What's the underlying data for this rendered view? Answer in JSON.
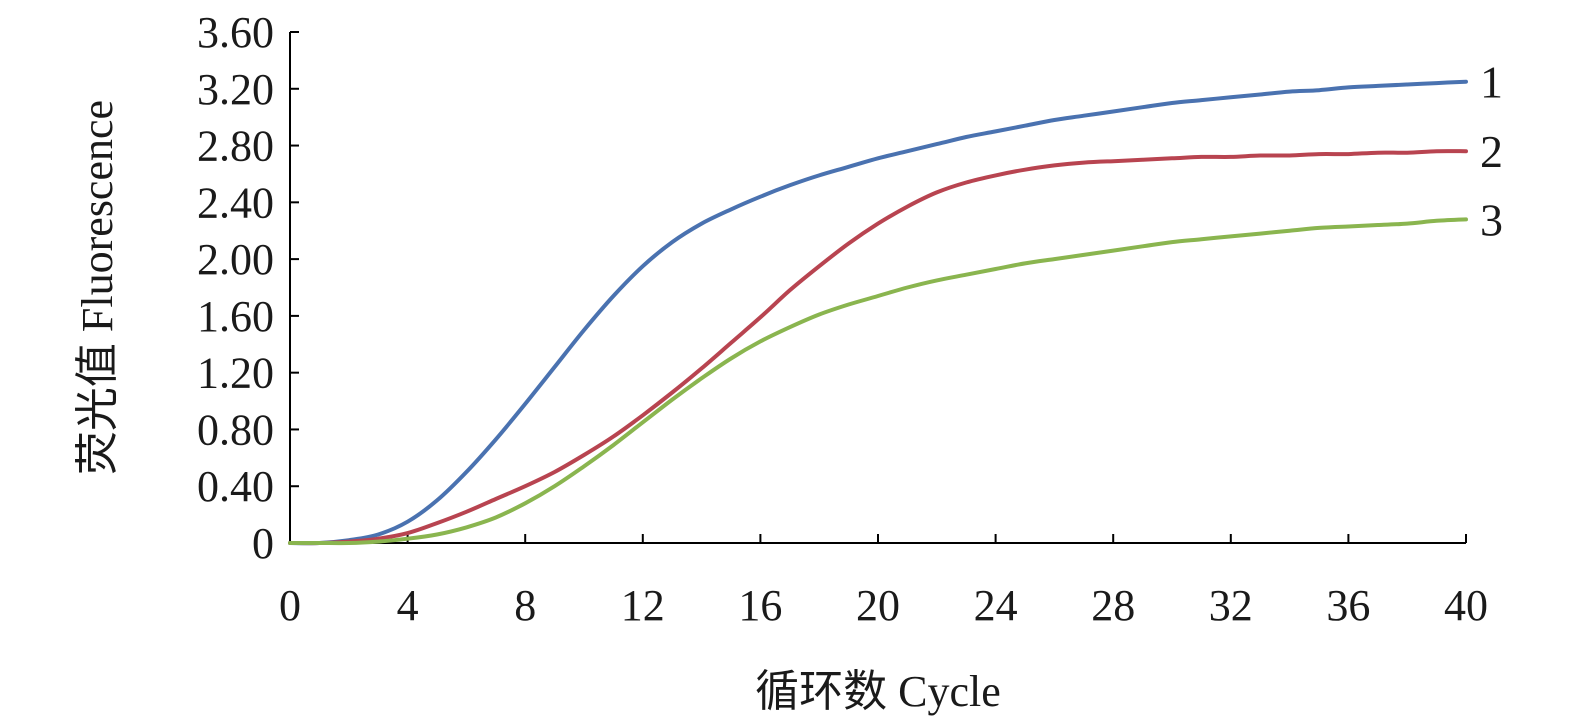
{
  "chart_data": {
    "type": "line",
    "xlabel": "循环数 Cycle",
    "ylabel": "荧光值 Fluorescence",
    "xlim": [
      0,
      40
    ],
    "ylim": [
      0,
      3.6
    ],
    "xticks": [
      0,
      4,
      8,
      12,
      16,
      20,
      24,
      28,
      32,
      36,
      40
    ],
    "xtick_labels": [
      "0",
      "4",
      "8",
      "12",
      "16",
      "20",
      "24",
      "28",
      "32",
      "36",
      "40"
    ],
    "yticks": [
      0,
      0.4,
      0.8,
      1.2,
      1.6,
      2.0,
      2.4,
      2.8,
      3.2,
      3.6
    ],
    "ytick_labels": [
      "0",
      "0.40",
      "0.80",
      "1.20",
      "1.60",
      "2.00",
      "2.40",
      "2.80",
      "3.20",
      "3.60"
    ],
    "grid": false,
    "legend": "end-of-line labels",
    "series": [
      {
        "name": "1",
        "color": "#4a72b0",
        "x": [
          0,
          1,
          2,
          3,
          4,
          5,
          6,
          7,
          8,
          9,
          10,
          11,
          12,
          13,
          14,
          15,
          16,
          17,
          18,
          19,
          20,
          21,
          22,
          23,
          24,
          25,
          26,
          27,
          28,
          29,
          30,
          31,
          32,
          33,
          34,
          35,
          36,
          37,
          38,
          39,
          40
        ],
        "y": [
          0,
          0,
          0.02,
          0.06,
          0.15,
          0.3,
          0.5,
          0.73,
          0.98,
          1.24,
          1.5,
          1.74,
          1.95,
          2.12,
          2.25,
          2.35,
          2.44,
          2.52,
          2.59,
          2.65,
          2.71,
          2.76,
          2.81,
          2.86,
          2.9,
          2.94,
          2.98,
          3.01,
          3.04,
          3.07,
          3.1,
          3.12,
          3.14,
          3.16,
          3.18,
          3.19,
          3.21,
          3.22,
          3.23,
          3.24,
          3.25
        ]
      },
      {
        "name": "2",
        "color": "#b84450",
        "x": [
          0,
          1,
          2,
          3,
          4,
          5,
          6,
          7,
          8,
          9,
          10,
          11,
          12,
          13,
          14,
          15,
          16,
          17,
          18,
          19,
          20,
          21,
          22,
          23,
          24,
          25,
          26,
          27,
          28,
          29,
          30,
          31,
          32,
          33,
          34,
          35,
          36,
          37,
          38,
          39,
          40
        ],
        "y": [
          0,
          0,
          0.01,
          0.03,
          0.07,
          0.14,
          0.22,
          0.31,
          0.4,
          0.5,
          0.62,
          0.75,
          0.9,
          1.06,
          1.23,
          1.41,
          1.59,
          1.78,
          1.95,
          2.11,
          2.25,
          2.37,
          2.47,
          2.54,
          2.59,
          2.63,
          2.66,
          2.68,
          2.69,
          2.7,
          2.71,
          2.72,
          2.72,
          2.73,
          2.73,
          2.74,
          2.74,
          2.75,
          2.75,
          2.76,
          2.76
        ]
      },
      {
        "name": "3",
        "color": "#8ab54f",
        "x": [
          0,
          1,
          2,
          3,
          4,
          5,
          6,
          7,
          8,
          9,
          10,
          11,
          12,
          13,
          14,
          15,
          16,
          17,
          18,
          19,
          20,
          21,
          22,
          23,
          24,
          25,
          26,
          27,
          28,
          29,
          30,
          31,
          32,
          33,
          34,
          35,
          36,
          37,
          38,
          39,
          40
        ],
        "y": [
          0,
          0,
          0,
          0.01,
          0.03,
          0.06,
          0.11,
          0.18,
          0.28,
          0.4,
          0.54,
          0.69,
          0.85,
          1.01,
          1.16,
          1.3,
          1.42,
          1.52,
          1.61,
          1.68,
          1.74,
          1.8,
          1.85,
          1.89,
          1.93,
          1.97,
          2.0,
          2.03,
          2.06,
          2.09,
          2.12,
          2.14,
          2.16,
          2.18,
          2.2,
          2.22,
          2.23,
          2.24,
          2.25,
          2.27,
          2.28
        ]
      }
    ]
  }
}
